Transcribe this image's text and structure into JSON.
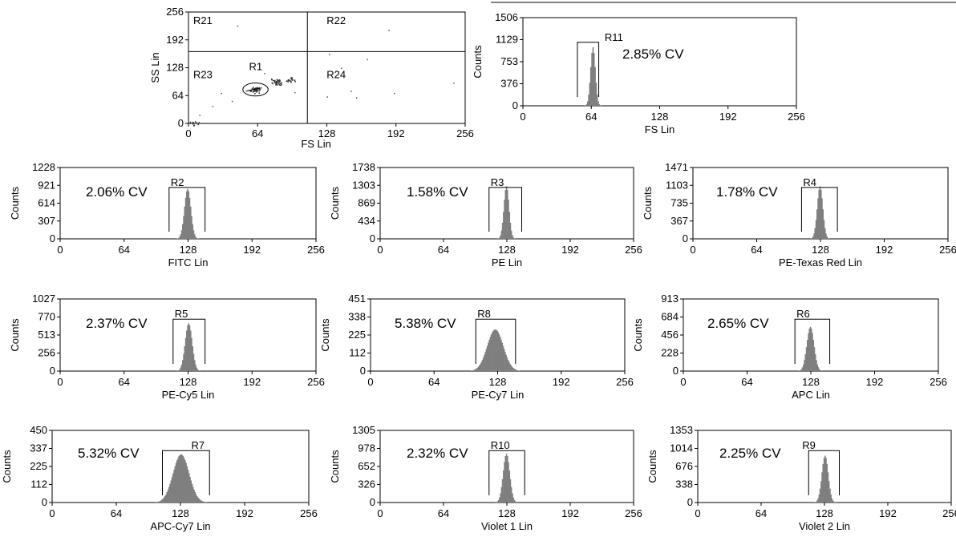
{
  "chart_data": [
    {
      "type": "scatter",
      "id": "scatter",
      "xlabel": "FS Lin",
      "ylabel": "SS Lin",
      "xlim": [
        0,
        256
      ],
      "ylim": [
        0,
        256
      ],
      "xticks": [
        "0",
        "64",
        "128",
        "192",
        "256"
      ],
      "yticks": [
        "0",
        "64",
        "128",
        "192",
        "256"
      ],
      "quadrant_lines": {
        "x": 110,
        "y": 165
      },
      "regions": [
        "R21",
        "R22",
        "R23",
        "R24"
      ],
      "gate": {
        "label": "R1",
        "cx": 62,
        "cy": 78,
        "rx": 9,
        "ry": 15
      },
      "clusters": [
        {
          "x": 62,
          "y": 78,
          "n": 40
        },
        {
          "x": 82,
          "y": 96,
          "n": 35
        },
        {
          "x": 95,
          "y": 102,
          "n": 20
        },
        {
          "x": 4,
          "y": 3,
          "n": 12
        }
      ],
      "outliers": [
        [
          30,
          70
        ],
        [
          40,
          52
        ],
        [
          22,
          40
        ],
        [
          70,
          116
        ],
        [
          98,
          72
        ],
        [
          128,
          62
        ],
        [
          155,
          60
        ],
        [
          141,
          128
        ],
        [
          165,
          148
        ],
        [
          130,
          160
        ],
        [
          185,
          215
        ],
        [
          45,
          225
        ],
        [
          10,
          20
        ],
        [
          150,
          75
        ],
        [
          190,
          70
        ],
        [
          245,
          94
        ]
      ]
    },
    {
      "type": "histogram",
      "id": "fs",
      "xlabel": "FS Lin",
      "ylabel": "Counts",
      "xlim": [
        0,
        256
      ],
      "xticks": [
        "0",
        "64",
        "128",
        "192",
        "256"
      ],
      "yticks": [
        "0",
        "376",
        "753",
        "1129",
        "1506"
      ],
      "ymax": 1506,
      "peak": {
        "center": 65,
        "sd": 2.2,
        "height": 1000
      },
      "gate": {
        "label": "R11",
        "from": 51,
        "to": 71
      },
      "cv": "2.85% CV"
    },
    {
      "type": "histogram",
      "id": "fitc",
      "xlabel": "FITC Lin",
      "ylabel": "Counts",
      "xlim": [
        0,
        256
      ],
      "xticks": [
        "0",
        "64",
        "128",
        "192",
        "256"
      ],
      "yticks": [
        "0",
        "307",
        "614",
        "921",
        "1228"
      ],
      "ymax": 1228,
      "peak": {
        "center": 127,
        "sd": 3.2,
        "height": 860
      },
      "gate": {
        "label": "R2",
        "from": 109,
        "to": 145
      },
      "cv": "2.06% CV"
    },
    {
      "type": "histogram",
      "id": "pe",
      "xlabel": "PE Lin",
      "ylabel": "Counts",
      "xlim": [
        0,
        256
      ],
      "xticks": [
        "0",
        "64",
        "128",
        "192",
        "256"
      ],
      "yticks": [
        "0",
        "434",
        "869",
        "1303",
        "1738"
      ],
      "ymax": 1738,
      "peak": {
        "center": 127,
        "sd": 2.6,
        "height": 1280
      },
      "gate": {
        "label": "R3",
        "from": 110,
        "to": 143
      },
      "cv": "1.58% CV"
    },
    {
      "type": "histogram",
      "id": "petxr",
      "xlabel": "PE-Texas Red Lin",
      "ylabel": "Counts",
      "xlim": [
        0,
        256
      ],
      "xticks": [
        "0",
        "64",
        "128",
        "192",
        "256"
      ],
      "yticks": [
        "0",
        "367",
        "735",
        "1103",
        "1471"
      ],
      "ymax": 1471,
      "peak": {
        "center": 127,
        "sd": 2.8,
        "height": 1080
      },
      "gate": {
        "label": "R4",
        "from": 109,
        "to": 145
      },
      "cv": "1.78% CV"
    },
    {
      "type": "histogram",
      "id": "pecy5",
      "xlabel": "PE-Cy5 Lin",
      "ylabel": "Counts",
      "xlim": [
        0,
        256
      ],
      "xticks": [
        "0",
        "64",
        "128",
        "192",
        "256"
      ],
      "yticks": [
        "0",
        "256",
        "513",
        "770",
        "1027"
      ],
      "ymax": 1027,
      "peak": {
        "center": 128,
        "sd": 3.5,
        "height": 680
      },
      "gate": {
        "label": "R5",
        "from": 113,
        "to": 145
      },
      "cv": "2.37% CV"
    },
    {
      "type": "histogram",
      "id": "pecy7",
      "xlabel": "PE-Cy7 Lin",
      "ylabel": "Counts",
      "xlim": [
        0,
        256
      ],
      "xticks": [
        "0",
        "64",
        "128",
        "192",
        "256"
      ],
      "yticks": [
        "0",
        "112",
        "225",
        "338",
        "451"
      ],
      "ymax": 451,
      "peak": {
        "center": 125,
        "sd": 8,
        "height": 260
      },
      "gate": {
        "label": "R8",
        "from": 106,
        "to": 146
      },
      "cv": "5.38% CV"
    },
    {
      "type": "histogram",
      "id": "apc",
      "xlabel": "APC Lin",
      "ylabel": "Counts",
      "xlim": [
        0,
        256
      ],
      "xticks": [
        "0",
        "64",
        "128",
        "192",
        "256"
      ],
      "yticks": [
        "0",
        "228",
        "456",
        "684",
        "913"
      ],
      "ymax": 913,
      "peak": {
        "center": 127,
        "sd": 3.6,
        "height": 560
      },
      "gate": {
        "label": "R6",
        "from": 112,
        "to": 147
      },
      "cv": "2.65% CV"
    },
    {
      "type": "histogram",
      "id": "apccy7",
      "xlabel": "APC-Cy7 Lin",
      "ylabel": "Counts",
      "xlim": [
        0,
        256
      ],
      "xticks": [
        "0",
        "64",
        "128",
        "192",
        "256"
      ],
      "yticks": [
        "0",
        "112",
        "225",
        "337",
        "450"
      ],
      "ymax": 450,
      "peak": {
        "center": 128,
        "sd": 8,
        "height": 300
      },
      "gate": {
        "label": "R7",
        "from": 110,
        "to": 157
      },
      "cv": "5.32% CV"
    },
    {
      "type": "histogram",
      "id": "violet1",
      "xlabel": "Violet 1 Lin",
      "ylabel": "Counts",
      "xlim": [
        0,
        256
      ],
      "xticks": [
        "0",
        "64",
        "128",
        "192",
        "256"
      ],
      "yticks": [
        "0",
        "326",
        "652",
        "978",
        "1305"
      ],
      "ymax": 1305,
      "peak": {
        "center": 127,
        "sd": 3.3,
        "height": 880
      },
      "gate": {
        "label": "R10",
        "from": 110,
        "to": 146
      },
      "cv": "2.32% CV"
    },
    {
      "type": "histogram",
      "id": "violet2",
      "xlabel": "Violet 2 Lin",
      "ylabel": "Counts",
      "xlim": [
        0,
        256
      ],
      "xticks": [
        "0",
        "64",
        "128",
        "192",
        "256"
      ],
      "yticks": [
        "0",
        "338",
        "676",
        "1014",
        "1353"
      ],
      "ymax": 1353,
      "peak": {
        "center": 128,
        "sd": 3.2,
        "height": 880
      },
      "gate": {
        "label": "R9",
        "from": 112,
        "to": 143
      },
      "cv": "2.25% CV"
    }
  ]
}
